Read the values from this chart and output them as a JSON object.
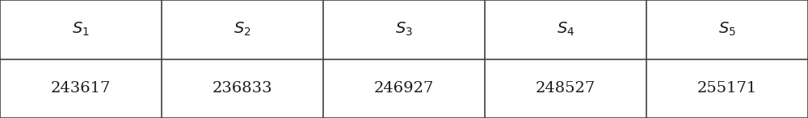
{
  "headers": [
    "$S_1$",
    "$S_2$",
    "$S_3$",
    "$S_4$",
    "$S_5$"
  ],
  "values": [
    "243617",
    "236833",
    "246927",
    "248527",
    "255171"
  ],
  "header_fontsize": 14,
  "value_fontsize": 14,
  "background_color": "#ffffff",
  "border_color": "#404040",
  "text_color": "#1a1a1a",
  "n_cols": 5,
  "n_rows": 2,
  "figwidth": 10.0,
  "figheight": 1.47,
  "dpi": 100,
  "lw": 1.2
}
